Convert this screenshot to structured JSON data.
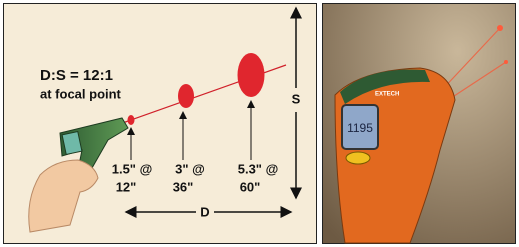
{
  "diagram": {
    "ratio_title": "D:S = 12:1",
    "ratio_subtitle": "at focal point",
    "spots": [
      {
        "size": "1.5\" @",
        "distance": "12\""
      },
      {
        "size": "3\" @",
        "distance": "36\""
      },
      {
        "size": "5.3\" @",
        "distance": "60\""
      }
    ],
    "distance_label": "D",
    "spot_label": "S"
  },
  "photo": {
    "brand": "EXTECH",
    "reading": "1195"
  }
}
